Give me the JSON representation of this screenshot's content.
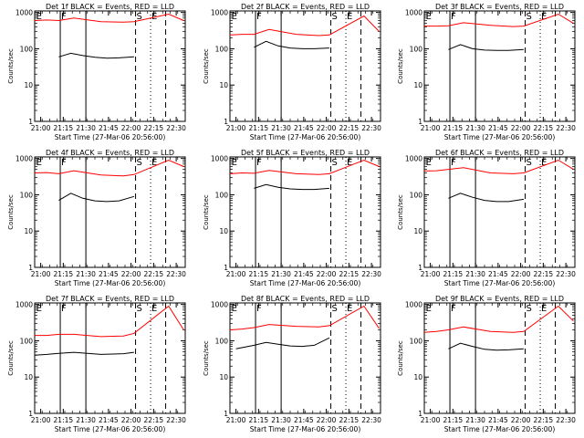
{
  "figure": {
    "ylabel": "Counts/sec",
    "xlabel": "Start Time (27-Mar-06 20:56:00)",
    "xticks": [
      "21:00",
      "21:15",
      "21:30",
      "21:45",
      "22:00",
      "22:15",
      "22:30"
    ],
    "yticks": [
      "1",
      "10",
      "100",
      "1000"
    ],
    "markers": [
      "E",
      "F",
      "S",
      "E"
    ],
    "colors": {
      "events": "#000000",
      "lld": "#ff0000",
      "axes": "#000000"
    }
  },
  "chart_data": [
    {
      "type": "line",
      "title": "Det 1f BLACK = Events, RED = LLD",
      "xlabel": "Start Time (27-Mar-06 20:56:00)",
      "ylabel": "Counts/sec",
      "y_scale": "log",
      "ylim": [
        1,
        1100
      ],
      "xlim": [
        "20:56",
        "22:36"
      ],
      "vlines": {
        "solid": [
          "21:13",
          "21:30"
        ],
        "dashed": [
          "22:03",
          "22:23"
        ],
        "dotted": [
          "22:13"
        ]
      },
      "series": [
        {
          "name": "Events",
          "color": "#000000",
          "x": [
            "21:12",
            "21:20",
            "21:28",
            "21:36",
            "21:44",
            "21:52",
            "22:02"
          ],
          "values": [
            60,
            75,
            65,
            58,
            55,
            56,
            60
          ]
        },
        {
          "name": "LLD",
          "color": "#ff0000",
          "x": [
            "20:56",
            "21:04",
            "21:12",
            "21:22",
            "21:40",
            "21:55",
            "22:02",
            "22:25",
            "22:35"
          ],
          "values": [
            600,
            620,
            600,
            700,
            560,
            540,
            560,
            900,
            600
          ]
        }
      ]
    },
    {
      "type": "line",
      "title": "Det 2f BLACK = Events, RED = LLD",
      "xlabel": "Start Time (27-Mar-06 20:56:00)",
      "ylabel": "Counts/sec",
      "y_scale": "log",
      "ylim": [
        1,
        1100
      ],
      "xlim": [
        "20:56",
        "22:36"
      ],
      "vlines": {
        "solid": [
          "21:13",
          "21:30"
        ],
        "dashed": [
          "22:03",
          "22:23"
        ],
        "dotted": [
          "22:13"
        ]
      },
      "series": [
        {
          "name": "Events",
          "color": "#000000",
          "x": [
            "21:12",
            "21:20",
            "21:28",
            "21:36",
            "21:44",
            "21:52",
            "22:02"
          ],
          "values": [
            110,
            160,
            120,
            105,
            100,
            100,
            105
          ]
        },
        {
          "name": "LLD",
          "color": "#ff0000",
          "x": [
            "20:56",
            "21:04",
            "21:12",
            "21:22",
            "21:40",
            "21:55",
            "22:02",
            "22:25",
            "22:35"
          ],
          "values": [
            240,
            250,
            250,
            340,
            250,
            230,
            240,
            800,
            300
          ]
        }
      ]
    },
    {
      "type": "line",
      "title": "Det 3f BLACK = Events, RED = LLD",
      "xlabel": "Start Time (27-Mar-06 20:56:00)",
      "ylabel": "Counts/sec",
      "y_scale": "log",
      "ylim": [
        1,
        1100
      ],
      "xlim": [
        "20:56",
        "22:36"
      ],
      "vlines": {
        "solid": [
          "21:13",
          "21:30"
        ],
        "dashed": [
          "22:03",
          "22:23"
        ],
        "dotted": [
          "22:13"
        ]
      },
      "series": [
        {
          "name": "Events",
          "color": "#000000",
          "x": [
            "21:12",
            "21:20",
            "21:28",
            "21:36",
            "21:44",
            "21:52",
            "22:02"
          ],
          "values": [
            95,
            130,
            100,
            92,
            90,
            90,
            95
          ]
        },
        {
          "name": "LLD",
          "color": "#ff0000",
          "x": [
            "20:56",
            "21:04",
            "21:12",
            "21:22",
            "21:40",
            "21:55",
            "22:02",
            "22:25",
            "22:35"
          ],
          "values": [
            420,
            420,
            430,
            520,
            440,
            410,
            420,
            900,
            500
          ]
        }
      ]
    },
    {
      "type": "line",
      "title": "Det 4f BLACK = Events, RED = LLD",
      "xlabel": "Start Time (27-Mar-06 20:56:00)",
      "ylabel": "Counts/sec",
      "y_scale": "log",
      "ylim": [
        1,
        1100
      ],
      "xlim": [
        "20:56",
        "22:36"
      ],
      "vlines": {
        "solid": [
          "21:13",
          "21:30"
        ],
        "dashed": [
          "22:03",
          "22:23"
        ],
        "dotted": [
          "22:13"
        ]
      },
      "series": [
        {
          "name": "Events",
          "color": "#000000",
          "x": [
            "21:12",
            "21:20",
            "21:28",
            "21:36",
            "21:44",
            "21:52",
            "22:02"
          ],
          "values": [
            70,
            110,
            80,
            68,
            65,
            68,
            90
          ]
        },
        {
          "name": "LLD",
          "color": "#ff0000",
          "x": [
            "20:56",
            "21:04",
            "21:12",
            "21:22",
            "21:40",
            "21:55",
            "22:02",
            "22:25",
            "22:35"
          ],
          "values": [
            400,
            410,
            380,
            460,
            350,
            330,
            360,
            900,
            600
          ]
        }
      ]
    },
    {
      "type": "line",
      "title": "Det 5f BLACK = Events, RED = LLD",
      "xlabel": "Start Time (27-Mar-06 20:56:00)",
      "ylabel": "Counts/sec",
      "y_scale": "log",
      "ylim": [
        1,
        1100
      ],
      "xlim": [
        "20:56",
        "22:36"
      ],
      "vlines": {
        "solid": [
          "21:13",
          "21:30"
        ],
        "dashed": [
          "22:03",
          "22:23"
        ],
        "dotted": [
          "22:13"
        ]
      },
      "series": [
        {
          "name": "Events",
          "color": "#000000",
          "x": [
            "21:12",
            "21:20",
            "21:28",
            "21:36",
            "21:44",
            "21:52",
            "22:02"
          ],
          "values": [
            150,
            190,
            160,
            145,
            140,
            140,
            150
          ]
        },
        {
          "name": "LLD",
          "color": "#ff0000",
          "x": [
            "20:56",
            "21:04",
            "21:12",
            "21:22",
            "21:40",
            "21:55",
            "22:02",
            "22:25",
            "22:35"
          ],
          "values": [
            380,
            400,
            390,
            470,
            380,
            360,
            380,
            900,
            600
          ]
        }
      ]
    },
    {
      "type": "line",
      "title": "Det 6f BLACK = Events, RED = LLD",
      "xlabel": "Start Time (27-Mar-06 20:56:00)",
      "ylabel": "Counts/sec",
      "y_scale": "log",
      "ylim": [
        1,
        1100
      ],
      "xlim": [
        "20:56",
        "22:36"
      ],
      "vlines": {
        "solid": [
          "21:13",
          "21:30"
        ],
        "dashed": [
          "22:03",
          "22:23"
        ],
        "dotted": [
          "22:13"
        ]
      },
      "series": [
        {
          "name": "Events",
          "color": "#000000",
          "x": [
            "21:12",
            "21:20",
            "21:28",
            "21:36",
            "21:44",
            "21:52",
            "22:02"
          ],
          "values": [
            80,
            110,
            85,
            70,
            65,
            65,
            75
          ]
        },
        {
          "name": "LLD",
          "color": "#ff0000",
          "x": [
            "20:56",
            "21:04",
            "21:12",
            "21:22",
            "21:40",
            "21:55",
            "22:02",
            "22:25",
            "22:35"
          ],
          "values": [
            450,
            460,
            500,
            560,
            400,
            380,
            400,
            900,
            500
          ]
        }
      ]
    },
    {
      "type": "line",
      "title": "Det 7f BLACK = Events, RED = LLD",
      "xlabel": "Start Time (27-Mar-06 20:56:00)",
      "ylabel": "Counts/sec",
      "y_scale": "log",
      "ylim": [
        1,
        1100
      ],
      "xlim": [
        "20:56",
        "22:36"
      ],
      "vlines": {
        "solid": [
          "21:13",
          "21:30"
        ],
        "dashed": [
          "22:03",
          "22:23"
        ],
        "dotted": [
          "22:13"
        ]
      },
      "series": [
        {
          "name": "Events",
          "color": "#000000",
          "x": [
            "20:56",
            "21:04",
            "21:12",
            "21:22",
            "21:40",
            "21:55",
            "22:02"
          ],
          "values": [
            40,
            42,
            45,
            48,
            42,
            44,
            48
          ]
        },
        {
          "name": "LLD",
          "color": "#ff0000",
          "x": [
            "20:56",
            "21:04",
            "21:12",
            "21:22",
            "21:40",
            "21:55",
            "22:02",
            "22:25",
            "22:35"
          ],
          "values": [
            140,
            140,
            150,
            150,
            130,
            135,
            160,
            900,
            200
          ]
        }
      ]
    },
    {
      "type": "line",
      "title": "Det 8f BLACK = Events, RED = LLD",
      "xlabel": "Start Time (27-Mar-06 20:56:00)",
      "ylabel": "Counts/sec",
      "y_scale": "log",
      "ylim": [
        1,
        1100
      ],
      "xlim": [
        "20:56",
        "22:36"
      ],
      "vlines": {
        "solid": [
          "21:13",
          "21:30"
        ],
        "dashed": [
          "22:03",
          "22:23"
        ],
        "dotted": [
          "22:13"
        ]
      },
      "series": [
        {
          "name": "Events",
          "color": "#000000",
          "x": [
            "21:00",
            "21:12",
            "21:20",
            "21:28",
            "21:36",
            "21:44",
            "21:52",
            "22:02"
          ],
          "values": [
            60,
            75,
            90,
            80,
            72,
            70,
            75,
            120
          ]
        },
        {
          "name": "LLD",
          "color": "#ff0000",
          "x": [
            "20:56",
            "21:04",
            "21:12",
            "21:22",
            "21:40",
            "21:55",
            "22:02",
            "22:25",
            "22:35"
          ],
          "values": [
            200,
            210,
            230,
            280,
            250,
            240,
            260,
            900,
            220
          ]
        }
      ]
    },
    {
      "type": "line",
      "title": "Det 9f BLACK = Events, RED = LLD",
      "xlabel": "Start Time (27-Mar-06 20:56:00)",
      "ylabel": "Counts/sec",
      "y_scale": "log",
      "ylim": [
        1,
        1100
      ],
      "xlim": [
        "20:56",
        "22:36"
      ],
      "vlines": {
        "solid": [
          "21:13",
          "21:30"
        ],
        "dashed": [
          "22:03",
          "22:23"
        ],
        "dotted": [
          "22:13"
        ]
      },
      "series": [
        {
          "name": "Events",
          "color": "#000000",
          "x": [
            "21:12",
            "21:20",
            "21:28",
            "21:36",
            "21:44",
            "21:52",
            "22:02"
          ],
          "values": [
            60,
            85,
            70,
            58,
            55,
            56,
            60
          ]
        },
        {
          "name": "LLD",
          "color": "#ff0000",
          "x": [
            "20:56",
            "21:04",
            "21:12",
            "21:22",
            "21:40",
            "21:55",
            "22:02",
            "22:25",
            "22:35"
          ],
          "values": [
            170,
            180,
            200,
            240,
            180,
            170,
            180,
            900,
            350
          ]
        }
      ]
    }
  ]
}
